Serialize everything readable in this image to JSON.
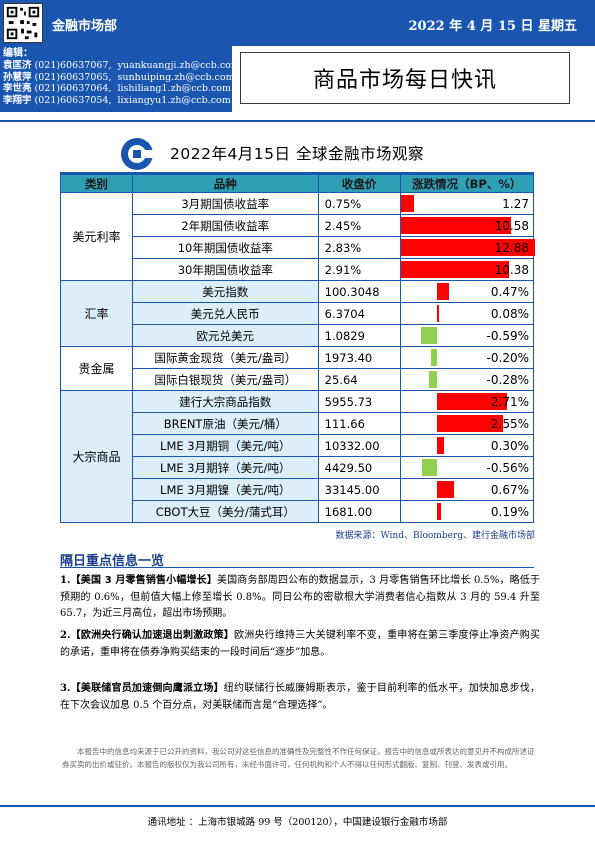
{
  "header": {
    "department": "金融市场部",
    "date": "2022 年 4 月 15 日  星期五"
  },
  "editors": {
    "label": "编辑：",
    "people": [
      {
        "name": "袁匡济",
        "phone": "(021)60637067,",
        "email": "yuankuangji.zh@ccb.com"
      },
      {
        "name": "孙慧萍",
        "phone": "(021)60637065,",
        "email": "sunhuiping.zh@ccb.com"
      },
      {
        "name": "李世亮",
        "phone": "(021)60637064,",
        "email": "lishiliang1.zh@ccb.com"
      },
      {
        "name": "李翔宇",
        "phone": "(021)60637054,",
        "email": "lixiangyu1.zh@ccb.com"
      }
    ]
  },
  "doc_title": "商品市场每日快讯",
  "table": {
    "title": "2022年4月15日  全球金融市场观察",
    "columns": [
      "类别",
      "品种",
      "收盘价",
      "涨跌情况（BP、%）"
    ],
    "groups": [
      {
        "category": "美元利率",
        "rows": [
          {
            "name": "3月期国债收益率",
            "close": "0.75%",
            "change": "1.27",
            "value": 1.27
          },
          {
            "name": "2年期国债收益率",
            "close": "2.45%",
            "change": "10.58",
            "value": 10.58
          },
          {
            "name": "10年期国债收益率",
            "close": "2.83%",
            "change": "12.88",
            "value": 12.88
          },
          {
            "name": "30年期国债收益率",
            "close": "2.91%",
            "change": "10.38",
            "value": 10.38
          }
        ]
      },
      {
        "category": "汇率",
        "rows": [
          {
            "name": "美元指数",
            "close": "100.3048",
            "change": "0.47%",
            "value": 0.47
          },
          {
            "name": "美元兑人民币",
            "close": "6.3704",
            "change": "0.08%",
            "value": 0.08
          },
          {
            "name": "欧元兑美元",
            "close": "1.0829",
            "change": "-0.59%",
            "value": -0.59
          }
        ]
      },
      {
        "category": "贵金属",
        "rows": [
          {
            "name": "国际黄金现货（美元/盎司）",
            "close": "1973.40",
            "change": "-0.20%",
            "value": -0.2
          },
          {
            "name": "国际白银现货（美元/盎司）",
            "close": "25.64",
            "change": "-0.28%",
            "value": -0.28
          }
        ]
      },
      {
        "category": "大宗商品",
        "rows": [
          {
            "name": "建行大宗商品指数",
            "close": "5955.73",
            "change": "2.71%",
            "value": 2.71
          },
          {
            "name": "BRENT原油（美元/桶）",
            "close": "111.66",
            "change": "2.55%",
            "value": 2.55
          },
          {
            "name": "LME 3月期铜（美元/吨）",
            "close": "10332.00",
            "change": "0.30%",
            "value": 0.3
          },
          {
            "name": "LME 3月期锌（美元/吨）",
            "close": "4429.50",
            "change": "-0.56%",
            "value": -0.56
          },
          {
            "name": "LME 3月期镍（美元/吨）",
            "close": "33145.00",
            "change": "0.67%",
            "value": 0.67
          },
          {
            "name": "CBOT大豆（美分/蒲式耳）",
            "close": "1681.00",
            "change": "0.19%",
            "value": 0.19
          }
        ]
      }
    ],
    "source": "数据来源：Wind、Bloomberg、建行金融市场部"
  },
  "news": {
    "title": "隔日重点信息一览",
    "items": [
      {
        "num": "1.",
        "head": "【美国 3 月零售销售小幅增长】",
        "body": "美国商务部周四公布的数据显示，3 月零售销售环比增长 0.5%，略低于预期的 0.6%，但前值大幅上修至增长 0.8%。同日公布的密歇根大学消费者信心指数从 3 月的 59.4 升至 65.7，为近三月高位，超出市场预期。"
      },
      {
        "num": "2.",
        "head": "【欧洲央行确认加速退出刺激政策】",
        "body": "欧洲央行维持三大关键利率不变，重申将在第三季度停止净资产购买的承诺，重申将在债券净购买结束的一段时间后“逐步”加息。"
      },
      {
        "num": "3.",
        "head": "【美联储官员加速倒向鹰派立场】",
        "body": "纽约联储行长威廉姆斯表示，鉴于目前利率的低水平，加快加息步伐，在下次会议加息 0.5 个百分点，对美联储而言是“合理选择”。"
      }
    ]
  },
  "disclaimer": "本报告中的信息均来源于已公开的资料，我公司对这些信息的准确性及完整性不作任何保证，报告中的信息或所表达的意见并不构成所述证券买卖的出价或征价。本报告的版权仅为我公司所有，未经书面许可，任何机构和个人不得以任何形式翻版、复制、刊登、发表或引用。",
  "footer": "通讯地址 ：上海市银城路 99 号（200120），中国建设银行金融市场部",
  "colors": {
    "brand": "#1a56b0",
    "up": "#ff0000",
    "down": "#92d050",
    "header_cell": "#2f9fb5"
  }
}
